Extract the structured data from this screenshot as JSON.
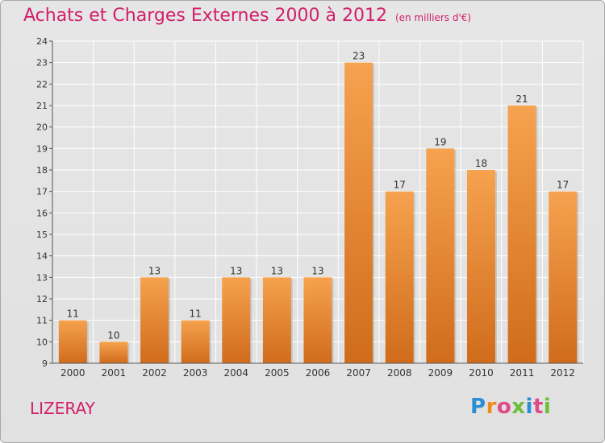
{
  "title": "Achats et Charges Externes 2000 à 2012",
  "unit": "(en milliers d'€)",
  "commune": "LIZERAY",
  "logo": {
    "text": "Proxiti",
    "letter_colors": [
      "#2a8fd6",
      "#f08a1a",
      "#e04a8a",
      "#6cbf3a",
      "#2a8fd6",
      "#e04a8a",
      "#6cbf3a"
    ]
  },
  "colors": {
    "title": "#d1206a",
    "bar_light": "#f6a24e",
    "bar_dark": "#d06c1c",
    "grid": "#ffffff",
    "axis_text": "#333333"
  },
  "chart_data": {
    "type": "bar",
    "title": "Achats et Charges Externes 2000 à 2012",
    "xlabel": "",
    "ylabel": "",
    "categories": [
      "2000",
      "2001",
      "2002",
      "2003",
      "2004",
      "2005",
      "2006",
      "2007",
      "2008",
      "2009",
      "2010",
      "2011",
      "2012"
    ],
    "values": [
      11,
      10,
      13,
      11,
      13,
      13,
      13,
      23,
      17,
      19,
      18,
      21,
      17
    ],
    "ylim": [
      9,
      24
    ],
    "yticks": [
      9,
      10,
      11,
      12,
      13,
      14,
      15,
      16,
      17,
      18,
      19,
      20,
      21,
      22,
      23,
      24
    ],
    "grid": true,
    "data_labels": true
  }
}
